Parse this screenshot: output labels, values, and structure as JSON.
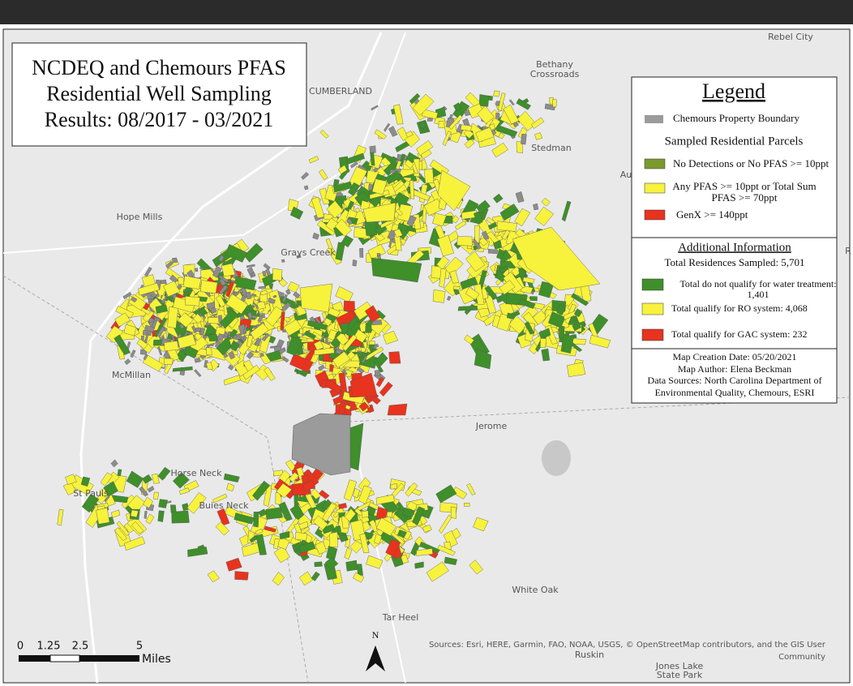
{
  "header": {
    "title_lines": [
      "NCDEQ and Chemours PFAS",
      "Residential Well Sampling",
      "Results: 08/2017 - 03/2021"
    ]
  },
  "legend": {
    "title": "Legend",
    "boundary": {
      "label": "Chemours Property Boundary",
      "color": "#9b9b9b"
    },
    "parcels_heading": "Sampled Residential Parcels",
    "items": [
      {
        "label": "No Detections or No PFAS >= 10ppt",
        "color": "#7a9a2e"
      },
      {
        "label_lines": [
          "Any PFAS >= 10ppt or Total Sum",
          "PFAS >= 70ppt"
        ],
        "color": "#f7f23c"
      },
      {
        "label": "GenX >= 140ppt",
        "color": "#e8331f"
      }
    ]
  },
  "additional": {
    "heading": "Additional Information",
    "total": "Total Residences Sampled: 5,701",
    "items": [
      {
        "label_lines": [
          "Total do not qualify for water treatment:",
          "1,401"
        ],
        "color": "#3f8f2a"
      },
      {
        "label_lines": [
          "Total qualify for RO system: 4,068"
        ],
        "color": "#f7f23c"
      },
      {
        "label_lines": [
          "Total qualify for GAC system: 232"
        ],
        "color": "#e8331f"
      }
    ]
  },
  "info": {
    "lines": [
      "Map Creation Date: 05/20/2021",
      "Map Author: Elena Beckman",
      "Data Sources: North Carolina Department of",
      "Environmental Quality, Chemours, ESRI"
    ]
  },
  "places": [
    "Rebel City",
    "Bethany",
    "Crossroads",
    "CUMBERLAND",
    "Stedman",
    "Au",
    "Hope Mills",
    "Grays Creek",
    "McMillan",
    "Jerome",
    "Horse Neck",
    "St Pauls",
    "Buies Neck",
    "White Oak",
    "Tar Heel",
    "Ruskin",
    "Jones Lake",
    "State Park",
    "R"
  ],
  "scale": {
    "ticks": [
      "0",
      "1.25",
      "2.5",
      "5"
    ],
    "unit": "Miles"
  },
  "north": "N",
  "attribution": [
    "Sources: Esri, HERE, Garmin, FAO, NOAA, USGS, © OpenStreetMap contributors, and the GIS User",
    "Community"
  ]
}
